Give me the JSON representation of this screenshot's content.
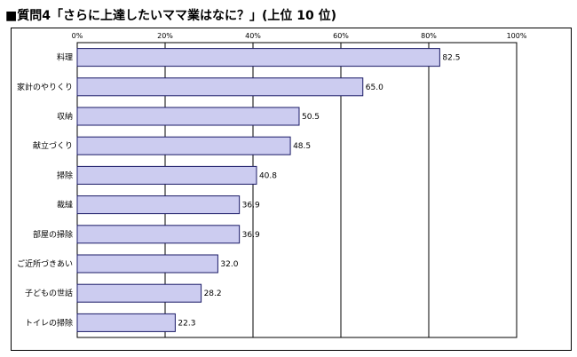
{
  "page_title": "■質問4「さらに上達したいママ業はなに？」(上位 10 位)",
  "chart_data": {
    "type": "bar",
    "orientation": "horizontal",
    "categories": [
      "料理",
      "家計のやりくり",
      "収納",
      "献立づくり",
      "掃除",
      "裁縫",
      "部屋の掃除",
      "ご近所づきあい",
      "子どもの世話",
      "トイレの掃除"
    ],
    "values": [
      82.5,
      65.0,
      50.5,
      48.5,
      40.8,
      36.9,
      36.9,
      32.0,
      28.2,
      22.3
    ],
    "value_labels": [
      "82.5",
      "65.0",
      "50.5",
      "48.5",
      "40.8",
      "36.9",
      "36.9",
      "32.0",
      "28.2",
      "22.3"
    ],
    "xlim": [
      0,
      100
    ],
    "x_ticks": [
      0,
      20,
      40,
      60,
      80,
      100
    ],
    "x_tick_labels": [
      "0%",
      "20%",
      "40%",
      "60%",
      "80%",
      "100%"
    ],
    "grid": true,
    "bar_fill": "#ccccf0",
    "bar_stroke": "#1a1a66"
  }
}
